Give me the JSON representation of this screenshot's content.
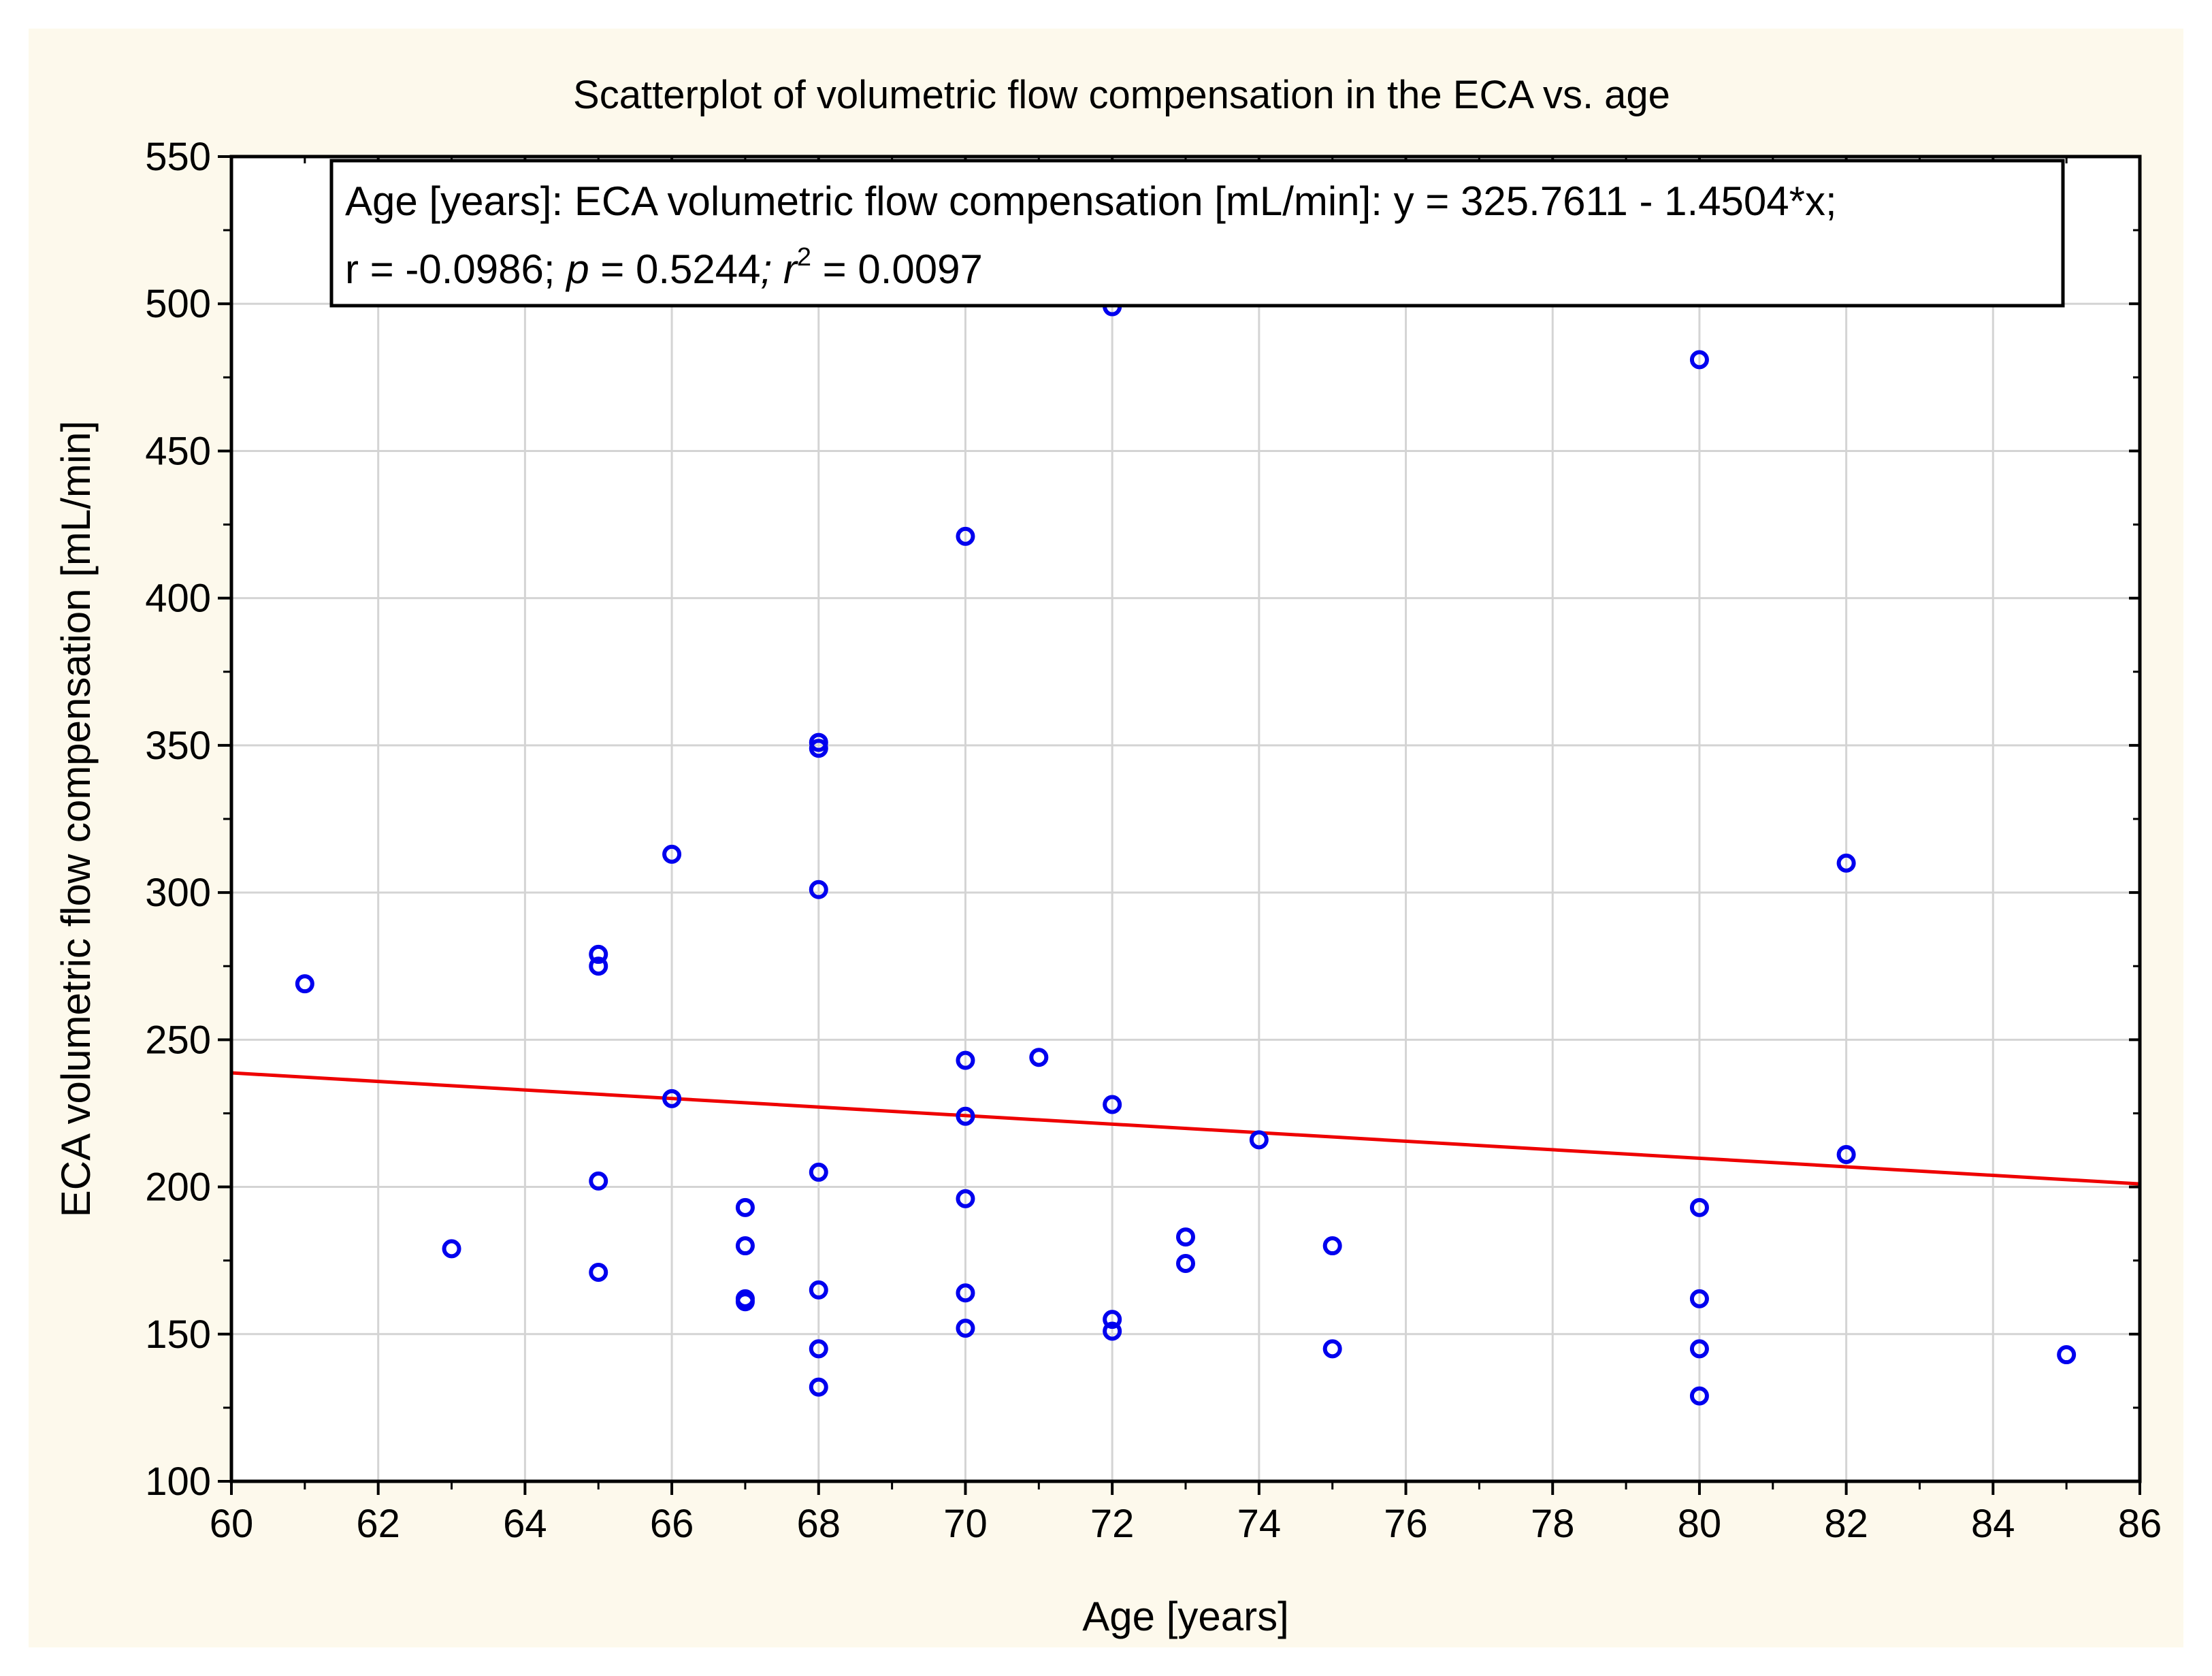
{
  "chart_data": {
    "type": "scatter",
    "title": "Scatterplot of volumetric flow  compensation in the ECA vs. age",
    "xlabel": "Age [years]",
    "ylabel": "ECA volumetric flow compensation [mL/min]",
    "xlim": [
      60,
      86
    ],
    "ylim": [
      100,
      550
    ],
    "xticks": [
      60,
      62,
      64,
      66,
      68,
      70,
      72,
      74,
      76,
      78,
      80,
      82,
      84,
      86
    ],
    "yticks": [
      100,
      150,
      200,
      250,
      300,
      350,
      400,
      450,
      500,
      550
    ],
    "grid": true,
    "colors": {
      "points": "#0000ee",
      "fit_line": "#ee0000",
      "background": "#fdf9ec"
    },
    "regression": {
      "intercept": 325.7611,
      "slope": -1.4504
    },
    "annotation": {
      "line1": "Age [years]: ECA volumetric flow  compensation [mL/min]: y = 325.7611 - 1.4504*x;",
      "r_text": "r = -0.0986; ",
      "p_symbol": "p",
      "p_text": " = 0.5244",
      "semicolon": "; ",
      "r2_symbol": "r",
      "r2_exp": "2",
      "r2_text": " = 0.0097"
    },
    "points": [
      {
        "x": 61,
        "y": 269
      },
      {
        "x": 63,
        "y": 179
      },
      {
        "x": 65,
        "y": 279
      },
      {
        "x": 65,
        "y": 275
      },
      {
        "x": 65,
        "y": 202
      },
      {
        "x": 65,
        "y": 171
      },
      {
        "x": 66,
        "y": 313
      },
      {
        "x": 66,
        "y": 230
      },
      {
        "x": 67,
        "y": 193
      },
      {
        "x": 67,
        "y": 180
      },
      {
        "x": 67,
        "y": 162
      },
      {
        "x": 67,
        "y": 161
      },
      {
        "x": 68,
        "y": 351
      },
      {
        "x": 68,
        "y": 349
      },
      {
        "x": 68,
        "y": 301
      },
      {
        "x": 68,
        "y": 205
      },
      {
        "x": 68,
        "y": 165
      },
      {
        "x": 68,
        "y": 145
      },
      {
        "x": 68,
        "y": 132
      },
      {
        "x": 70,
        "y": 421
      },
      {
        "x": 70,
        "y": 243
      },
      {
        "x": 70,
        "y": 224
      },
      {
        "x": 70,
        "y": 196
      },
      {
        "x": 70,
        "y": 164
      },
      {
        "x": 70,
        "y": 152
      },
      {
        "x": 71,
        "y": 244
      },
      {
        "x": 72,
        "y": 499
      },
      {
        "x": 72,
        "y": 228
      },
      {
        "x": 72,
        "y": 155
      },
      {
        "x": 72,
        "y": 151
      },
      {
        "x": 73,
        "y": 183
      },
      {
        "x": 73,
        "y": 174
      },
      {
        "x": 74,
        "y": 216
      },
      {
        "x": 75,
        "y": 180
      },
      {
        "x": 75,
        "y": 145
      },
      {
        "x": 80,
        "y": 481
      },
      {
        "x": 80,
        "y": 193
      },
      {
        "x": 80,
        "y": 162
      },
      {
        "x": 80,
        "y": 145
      },
      {
        "x": 80,
        "y": 129
      },
      {
        "x": 82,
        "y": 310
      },
      {
        "x": 82,
        "y": 211
      },
      {
        "x": 85,
        "y": 143
      }
    ]
  }
}
